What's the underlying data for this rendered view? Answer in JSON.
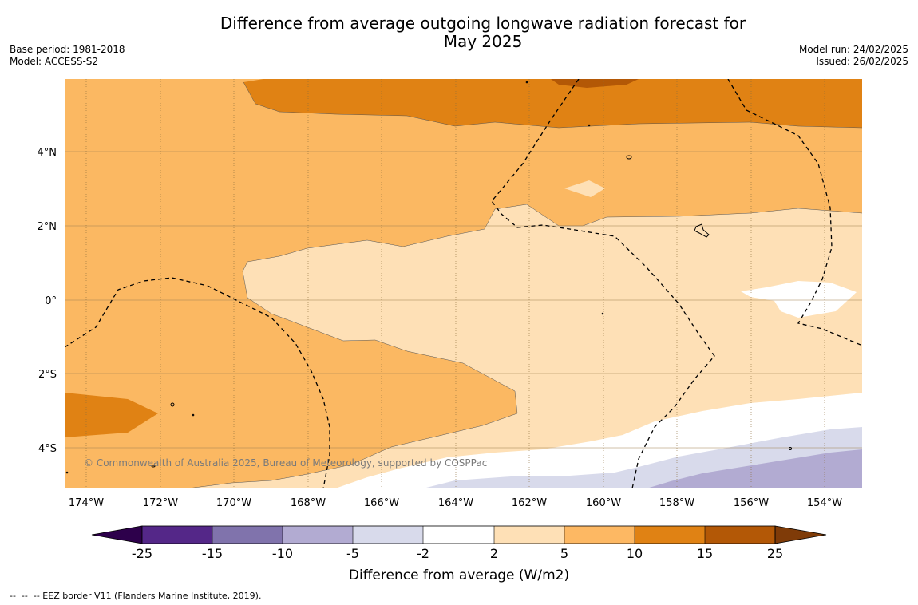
{
  "title_line1": "Difference from average outgoing longwave radiation forecast for",
  "title_line2": "May 2025",
  "meta": {
    "base_period": "Base period: 1981-2018",
    "model": "Model: ACCESS-S2",
    "model_run": "Model run: 24/02/2025",
    "issued": "Issued: 26/02/2025"
  },
  "copyright": "© Commonwealth of Australia 2025, Bureau of Meteorology, supported by COSPPac",
  "footer": "--  --  -- EEZ border V11 (Flanders Marine Institute, 2019).",
  "map": {
    "lon_labels": [
      "174°W",
      "172°W",
      "170°W",
      "168°W",
      "166°W",
      "164°W",
      "162°W",
      "160°W",
      "158°W",
      "156°W",
      "154°W"
    ],
    "lat_labels": [
      "4°N",
      "2°N",
      "0°",
      "2°S",
      "4°S"
    ],
    "colors": {
      "c5_10": "#fbb862",
      "c10_15": "#e08214",
      "c15_25": "#b35806",
      "c2_5": "#fee0b6",
      "cm2_2": "#ffffff",
      "cm5_m2": "#d8daeb",
      "cm10_m5": "#b2abd2"
    }
  },
  "colorbar": {
    "ticks": [
      "-25",
      "-15",
      "-10",
      "-5",
      "-2",
      "2",
      "5",
      "10",
      "15",
      "25"
    ],
    "colors": [
      "#542788",
      "#8073ac",
      "#b2abd2",
      "#d8daeb",
      "#ffffff",
      "#fee0b6",
      "#fdb863",
      "#e08214",
      "#b35806"
    ],
    "extend_low": "#2d004b",
    "extend_high": "#7f3b08",
    "label": "Difference from average (W/m2)"
  }
}
